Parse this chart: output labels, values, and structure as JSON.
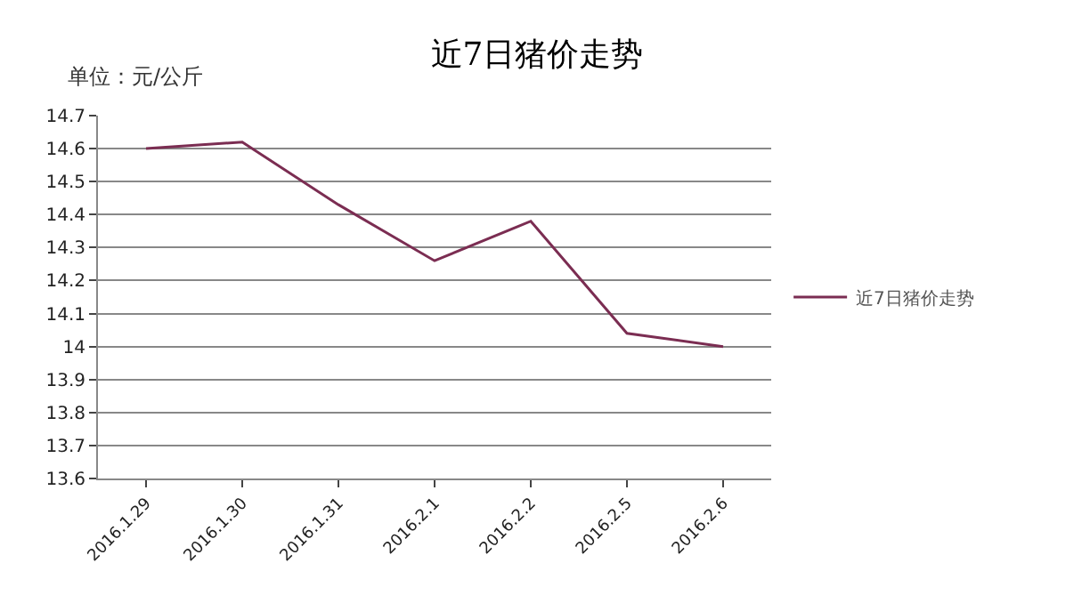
{
  "chart_data": {
    "type": "line",
    "title": "近7日猪价走势",
    "annotations": [
      "单位：元/公斤"
    ],
    "categories": [
      "2016.1.29",
      "2016.1.30",
      "2016.1.31",
      "2016.2.1",
      "2016.2.2",
      "2016.2.5",
      "2016.2.6"
    ],
    "series": [
      {
        "name": "近7日猪价走势",
        "color": "#7b2d52",
        "values": [
          14.6,
          14.62,
          14.43,
          14.26,
          14.38,
          14.04,
          14.0
        ]
      }
    ],
    "ylim": [
      13.6,
      14.7
    ],
    "yticks": [
      13.6,
      13.7,
      13.8,
      13.9,
      14,
      14.1,
      14.2,
      14.3,
      14.4,
      14.5,
      14.6,
      14.7
    ],
    "grid": "y",
    "legend": "right",
    "marker": "none",
    "line_style": "solid"
  }
}
